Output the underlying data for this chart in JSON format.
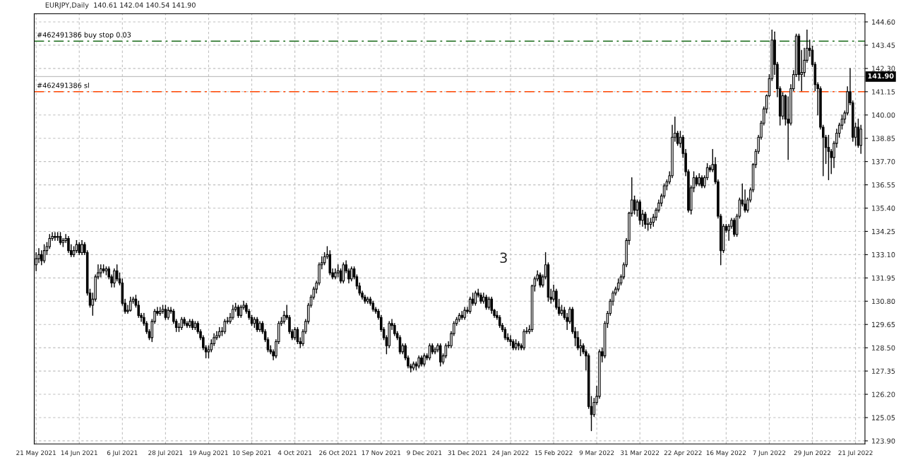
{
  "chart_data": {
    "type": "candlestick",
    "title": "EURJPY,Daily  140.61 142.04 140.54 141.90",
    "categories": [
      "21 May 2021",
      null,
      null,
      null,
      null,
      null,
      null,
      null,
      null,
      null,
      null,
      null,
      null,
      null,
      null,
      null,
      "14 Jun 2021",
      null,
      null,
      null,
      null,
      null,
      null,
      null,
      null,
      null,
      null,
      null,
      null,
      null,
      null,
      null,
      "6 Jul 2021",
      null,
      null,
      null,
      null,
      null,
      null,
      null,
      null,
      null,
      null,
      null,
      null,
      null,
      null,
      null,
      "28 Jul 2021",
      null,
      null,
      null,
      null,
      null,
      null,
      null,
      null,
      null,
      null,
      null,
      null,
      null,
      null,
      null,
      "19 Aug 2021",
      null,
      null,
      null,
      null,
      null,
      null,
      null,
      null,
      null,
      null,
      null,
      null,
      null,
      null,
      null,
      "10 Sep 2021",
      null,
      null,
      null,
      null,
      null,
      null,
      null,
      null,
      null,
      null,
      null,
      null,
      null,
      null,
      null,
      "4 Oct 2021",
      null,
      null,
      null,
      null,
      null,
      null,
      null,
      null,
      null,
      null,
      null,
      null,
      null,
      null,
      null,
      "26 Oct 2021",
      null,
      null,
      null,
      null,
      null,
      null,
      null,
      null,
      null,
      null,
      null,
      null,
      null,
      null,
      null,
      "17 Nov 2021",
      null,
      null,
      null,
      null,
      null,
      null,
      null,
      null,
      null,
      null,
      null,
      null,
      null,
      null,
      null,
      "9 Dec 2021",
      null,
      null,
      null,
      null,
      null,
      null,
      null,
      null,
      null,
      null,
      null,
      null,
      null,
      null,
      null,
      "31 Dec 2021",
      null,
      null,
      null,
      null,
      null,
      null,
      null,
      null,
      null,
      null,
      null,
      null,
      null,
      null,
      null,
      "24 Jan 2022",
      null,
      null,
      null,
      null,
      null,
      null,
      null,
      null,
      null,
      null,
      null,
      null,
      null,
      null,
      null,
      "15 Feb 2022",
      null,
      null,
      null,
      null,
      null,
      null,
      null,
      null,
      null,
      null,
      null,
      null,
      null,
      null,
      null,
      "9 Mar 2022",
      null,
      null,
      null,
      null,
      null,
      null,
      null,
      null,
      null,
      null,
      null,
      null,
      null,
      null,
      null,
      "31 Mar 2022",
      null,
      null,
      null,
      null,
      null,
      null,
      null,
      null,
      null,
      null,
      null,
      null,
      null,
      null,
      null,
      "22 Apr 2022",
      null,
      null,
      null,
      null,
      null,
      null,
      null,
      null,
      null,
      null,
      null,
      null,
      null,
      null,
      null,
      "16 May 2022",
      null,
      null,
      null,
      null,
      null,
      null,
      null,
      null,
      null,
      null,
      null,
      null,
      null,
      null,
      null,
      "7 Jun 2022",
      null,
      null,
      null,
      null,
      null,
      null,
      null,
      null,
      null,
      null,
      null,
      null,
      null,
      null,
      null,
      "29 Jun 2022",
      null,
      null,
      null,
      null,
      null,
      null,
      null,
      null,
      null,
      null,
      null,
      null,
      null,
      null,
      null,
      "21 Jul 2022",
      null,
      null
    ],
    "ohlc": [
      [
        132.6,
        133.2,
        132.3,
        132.9
      ],
      [
        132.9,
        133.4,
        132.7,
        133.1
      ],
      [
        133.1,
        133.3,
        132.6,
        132.8
      ],
      [
        132.8,
        133.6,
        132.7,
        133.3
      ],
      [
        133.3,
        133.7,
        133.1,
        133.5
      ],
      [
        133.5,
        134.1,
        133.4,
        133.9
      ],
      [
        133.9,
        134.2,
        133.8,
        134.0
      ],
      [
        134.0,
        134.2,
        133.8,
        133.95
      ],
      [
        133.95,
        134.2,
        133.8,
        134.0
      ],
      [
        134.0,
        134.2,
        133.6,
        133.7
      ],
      [
        133.7,
        133.9,
        133.5,
        133.8
      ],
      [
        133.8,
        134.1,
        133.7,
        133.9
      ],
      [
        133.9,
        134.0,
        133.2,
        133.3
      ],
      [
        133.3,
        133.6,
        133.0,
        133.1
      ],
      [
        133.1,
        133.5,
        133.0,
        133.3
      ],
      [
        133.3,
        133.8,
        133.2,
        133.6
      ],
      [
        133.6,
        133.7,
        133.1,
        133.2
      ],
      [
        133.2,
        133.8,
        133.1,
        133.6
      ],
      [
        133.6,
        133.7,
        133.1,
        133.2
      ],
      [
        133.2,
        133.3,
        131.1,
        131.2
      ],
      [
        131.2,
        131.4,
        130.5,
        130.6
      ],
      [
        130.6,
        131.2,
        130.1,
        130.9
      ],
      [
        130.9,
        132.1,
        130.8,
        132.0
      ],
      [
        132.0,
        132.6,
        131.9,
        132.2
      ],
      [
        132.2,
        132.6,
        132.0,
        132.4
      ],
      [
        132.4,
        132.6,
        132.2,
        132.3
      ],
      [
        132.3,
        132.5,
        132.1,
        132.4
      ],
      [
        132.4,
        132.5,
        131.9,
        132.0
      ],
      [
        132.0,
        132.1,
        131.5,
        131.7
      ],
      [
        131.7,
        132.4,
        131.5,
        132.3
      ],
      [
        132.3,
        132.6,
        131.8,
        131.9
      ],
      [
        131.9,
        132.2,
        131.6,
        131.7
      ],
      [
        131.7,
        131.9,
        130.6,
        130.7
      ],
      [
        130.7,
        130.9,
        130.2,
        130.3
      ],
      [
        130.3,
        130.6,
        130.2,
        130.35
      ],
      [
        130.35,
        131.0,
        130.3,
        130.8
      ],
      [
        130.8,
        131.0,
        130.7,
        130.9
      ],
      [
        130.9,
        131.1,
        130.5,
        130.6
      ],
      [
        130.6,
        130.8,
        130.0,
        130.1
      ],
      [
        130.1,
        130.2,
        129.8,
        130.0
      ],
      [
        130.0,
        130.2,
        129.6,
        129.7
      ],
      [
        129.7,
        129.8,
        129.2,
        129.3
      ],
      [
        129.3,
        129.4,
        128.9,
        129.0
      ],
      [
        129.0,
        129.9,
        128.8,
        129.8
      ],
      [
        129.8,
        130.4,
        129.7,
        130.3
      ],
      [
        130.3,
        130.5,
        130.1,
        130.2
      ],
      [
        130.2,
        130.5,
        130.1,
        130.3
      ],
      [
        130.3,
        130.6,
        130.2,
        130.4
      ],
      [
        130.4,
        130.6,
        129.9,
        130.0
      ],
      [
        130.0,
        130.5,
        129.9,
        130.35
      ],
      [
        130.35,
        130.5,
        130.2,
        130.3
      ],
      [
        130.3,
        130.4,
        129.7,
        129.8
      ],
      [
        129.8,
        129.9,
        129.3,
        129.5
      ],
      [
        129.5,
        129.7,
        129.3,
        129.5
      ],
      [
        129.5,
        130.0,
        129.4,
        129.9
      ],
      [
        129.9,
        130.0,
        129.6,
        129.7
      ],
      [
        129.7,
        129.8,
        129.5,
        129.6
      ],
      [
        129.6,
        129.9,
        129.5,
        129.8
      ],
      [
        129.8,
        129.9,
        129.4,
        129.5
      ],
      [
        129.5,
        129.8,
        129.4,
        129.7
      ],
      [
        129.7,
        129.8,
        129.2,
        129.3
      ],
      [
        129.3,
        129.4,
        128.9,
        129.0
      ],
      [
        129.0,
        129.1,
        128.4,
        128.5
      ],
      [
        128.5,
        128.6,
        128.0,
        128.3
      ],
      [
        128.3,
        128.6,
        128.0,
        128.4
      ],
      [
        128.4,
        128.9,
        128.3,
        128.7
      ],
      [
        128.7,
        129.2,
        128.6,
        129.0
      ],
      [
        129.0,
        129.3,
        128.9,
        129.1
      ],
      [
        129.1,
        129.5,
        129.0,
        129.3
      ],
      [
        129.3,
        129.5,
        129.1,
        129.3
      ],
      [
        129.3,
        129.9,
        129.2,
        129.8
      ],
      [
        129.8,
        130.0,
        129.7,
        129.8
      ],
      [
        129.8,
        130.2,
        129.7,
        130.0
      ],
      [
        130.0,
        130.6,
        129.9,
        130.4
      ],
      [
        130.4,
        130.7,
        130.3,
        130.5
      ],
      [
        130.5,
        130.6,
        130.0,
        130.1
      ],
      [
        130.1,
        130.6,
        130.0,
        130.5
      ],
      [
        130.5,
        130.8,
        130.4,
        130.6
      ],
      [
        130.6,
        130.7,
        130.2,
        130.3
      ],
      [
        130.3,
        130.4,
        129.9,
        130.0
      ],
      [
        130.0,
        130.1,
        129.6,
        129.7
      ],
      [
        129.7,
        130.0,
        129.5,
        129.9
      ],
      [
        129.9,
        130.0,
        129.3,
        129.4
      ],
      [
        129.4,
        129.8,
        129.3,
        129.7
      ],
      [
        129.7,
        129.8,
        129.2,
        129.3
      ],
      [
        129.3,
        129.4,
        128.8,
        128.9
      ],
      [
        128.9,
        129.0,
        128.3,
        128.4
      ],
      [
        128.4,
        128.6,
        128.2,
        128.3
      ],
      [
        128.3,
        128.4,
        127.9,
        128.1
      ],
      [
        128.1,
        128.9,
        128.0,
        128.8
      ],
      [
        128.8,
        129.8,
        128.7,
        129.7
      ],
      [
        129.7,
        130.0,
        129.6,
        129.8
      ],
      [
        129.8,
        130.3,
        129.7,
        130.1
      ],
      [
        130.1,
        130.6,
        129.9,
        130.0
      ],
      [
        130.0,
        130.1,
        129.2,
        129.3
      ],
      [
        129.3,
        129.4,
        128.9,
        129.0
      ],
      [
        129.0,
        129.5,
        128.9,
        129.4
      ],
      [
        129.4,
        129.5,
        128.7,
        128.8
      ],
      [
        128.8,
        129.0,
        128.5,
        128.7
      ],
      [
        128.7,
        129.4,
        128.6,
        129.3
      ],
      [
        129.3,
        129.9,
        129.2,
        129.8
      ],
      [
        129.8,
        130.7,
        129.7,
        130.6
      ],
      [
        130.6,
        131.1,
        130.5,
        131.0
      ],
      [
        131.0,
        131.5,
        130.9,
        131.4
      ],
      [
        131.4,
        131.8,
        131.2,
        131.7
      ],
      [
        131.7,
        132.7,
        131.6,
        132.6
      ],
      [
        132.6,
        133.0,
        132.4,
        132.7
      ],
      [
        132.7,
        133.2,
        132.6,
        133.0
      ],
      [
        133.0,
        133.5,
        132.9,
        133.1
      ],
      [
        133.1,
        133.3,
        132.1,
        132.2
      ],
      [
        132.2,
        132.4,
        131.9,
        132.0
      ],
      [
        132.0,
        132.4,
        131.9,
        132.2
      ],
      [
        132.2,
        132.6,
        132.0,
        132.3
      ],
      [
        132.3,
        132.4,
        131.7,
        131.8
      ],
      [
        131.8,
        132.7,
        131.7,
        132.6
      ],
      [
        132.6,
        132.8,
        132.2,
        132.3
      ],
      [
        132.3,
        132.4,
        131.7,
        131.9
      ],
      [
        131.9,
        132.5,
        131.8,
        132.4
      ],
      [
        132.4,
        132.5,
        131.9,
        132.0
      ],
      [
        132.0,
        132.1,
        131.4,
        131.55
      ],
      [
        131.55,
        131.7,
        131.1,
        131.2
      ],
      [
        131.2,
        131.3,
        130.9,
        131.0
      ],
      [
        131.0,
        131.1,
        130.7,
        130.8
      ],
      [
        130.8,
        131.0,
        130.7,
        130.9
      ],
      [
        130.9,
        131.0,
        130.6,
        130.7
      ],
      [
        130.7,
        130.8,
        130.3,
        130.4
      ],
      [
        130.4,
        130.5,
        130.2,
        130.3
      ],
      [
        130.3,
        130.4,
        129.9,
        130.0
      ],
      [
        130.0,
        130.1,
        129.3,
        129.4
      ],
      [
        129.4,
        129.5,
        128.9,
        129.0
      ],
      [
        129.0,
        129.1,
        128.2,
        128.6
      ],
      [
        128.6,
        129.8,
        128.5,
        129.7
      ],
      [
        129.7,
        129.9,
        129.4,
        129.6
      ],
      [
        129.6,
        129.7,
        129.1,
        129.2
      ],
      [
        129.2,
        129.3,
        128.9,
        129.0
      ],
      [
        129.0,
        129.1,
        128.2,
        128.3
      ],
      [
        128.3,
        128.7,
        128.2,
        128.6
      ],
      [
        128.6,
        128.7,
        127.9,
        128.0
      ],
      [
        128.0,
        128.1,
        127.5,
        127.6
      ],
      [
        127.6,
        127.7,
        127.3,
        127.5
      ],
      [
        127.5,
        127.8,
        127.4,
        127.7
      ],
      [
        127.7,
        127.8,
        127.4,
        127.6
      ],
      [
        127.6,
        128.1,
        127.5,
        128.0
      ],
      [
        128.0,
        128.1,
        127.6,
        127.7
      ],
      [
        127.7,
        128.2,
        127.6,
        128.1
      ],
      [
        128.1,
        128.2,
        127.9,
        128.0
      ],
      [
        128.0,
        128.7,
        127.9,
        128.6
      ],
      [
        128.6,
        128.7,
        128.2,
        128.3
      ],
      [
        128.3,
        128.5,
        128.2,
        128.4
      ],
      [
        128.4,
        128.7,
        128.3,
        128.6
      ],
      [
        128.6,
        128.7,
        127.6,
        127.8
      ],
      [
        127.8,
        128.2,
        127.7,
        128.1
      ],
      [
        128.1,
        128.7,
        128.0,
        128.6
      ],
      [
        128.6,
        128.8,
        128.5,
        128.6
      ],
      [
        128.6,
        129.3,
        128.5,
        129.2
      ],
      [
        129.2,
        129.8,
        129.1,
        129.7
      ],
      [
        129.7,
        130.0,
        129.6,
        129.9
      ],
      [
        129.9,
        130.2,
        129.8,
        130.1
      ],
      [
        130.1,
        130.3,
        129.9,
        130.0
      ],
      [
        130.0,
        130.5,
        129.9,
        130.35
      ],
      [
        130.35,
        130.5,
        130.2,
        130.3
      ],
      [
        130.3,
        131.0,
        130.2,
        130.9
      ],
      [
        130.9,
        131.2,
        130.6,
        130.7
      ],
      [
        130.7,
        131.3,
        130.6,
        131.2
      ],
      [
        131.2,
        131.4,
        131.0,
        131.1
      ],
      [
        131.1,
        131.2,
        130.7,
        130.8
      ],
      [
        130.8,
        131.2,
        130.7,
        131.0
      ],
      [
        131.0,
        131.1,
        130.4,
        130.5
      ],
      [
        130.5,
        131.0,
        130.4,
        130.9
      ],
      [
        130.9,
        131.0,
        130.2,
        130.35
      ],
      [
        130.35,
        130.4,
        130.0,
        130.1
      ],
      [
        130.1,
        130.3,
        129.9,
        130.0
      ],
      [
        130.0,
        130.1,
        129.5,
        129.6
      ],
      [
        129.6,
        129.7,
        129.3,
        129.4
      ],
      [
        129.4,
        129.5,
        128.9,
        129.0
      ],
      [
        129.0,
        129.2,
        128.8,
        128.9
      ],
      [
        128.9,
        129.1,
        128.6,
        128.8
      ],
      [
        128.8,
        128.9,
        128.4,
        128.5
      ],
      [
        128.5,
        128.9,
        128.4,
        128.7
      ],
      [
        128.7,
        128.8,
        128.4,
        128.6
      ],
      [
        128.6,
        128.7,
        128.4,
        128.5
      ],
      [
        128.5,
        129.4,
        128.4,
        129.3
      ],
      [
        129.3,
        129.5,
        129.2,
        129.3
      ],
      [
        129.3,
        129.6,
        129.2,
        129.4
      ],
      [
        129.4,
        131.6,
        129.3,
        131.55
      ],
      [
        131.55,
        132.0,
        131.3,
        131.9
      ],
      [
        131.9,
        132.3,
        131.8,
        132.1
      ],
      [
        132.1,
        132.2,
        131.5,
        131.6
      ],
      [
        131.6,
        132.1,
        131.5,
        132.0
      ],
      [
        132.0,
        133.2,
        131.9,
        132.6
      ],
      [
        132.6,
        132.7,
        130.8,
        131.0
      ],
      [
        131.0,
        131.4,
        130.7,
        130.9
      ],
      [
        130.9,
        131.6,
        130.8,
        131.3
      ],
      [
        131.3,
        131.4,
        130.4,
        130.5
      ],
      [
        130.5,
        130.9,
        130.1,
        130.2
      ],
      [
        130.2,
        130.6,
        130.1,
        130.35
      ],
      [
        130.35,
        130.5,
        129.9,
        130.0
      ],
      [
        130.0,
        130.2,
        129.4,
        129.8
      ],
      [
        129.8,
        130.5,
        129.7,
        130.4
      ],
      [
        130.4,
        130.5,
        129.2,
        129.3
      ],
      [
        129.3,
        129.5,
        128.6,
        129.0
      ],
      [
        129.0,
        129.3,
        128.4,
        128.5
      ],
      [
        128.5,
        128.9,
        128.1,
        128.6
      ],
      [
        128.6,
        128.7,
        128.2,
        128.3
      ],
      [
        128.3,
        128.4,
        127.4,
        128.1
      ],
      [
        128.1,
        128.2,
        125.5,
        125.6
      ],
      [
        125.6,
        126.1,
        124.4,
        125.2
      ],
      [
        125.2,
        126.0,
        125.1,
        125.8
      ],
      [
        125.8,
        126.6,
        125.7,
        126.1
      ],
      [
        126.1,
        128.4,
        126.0,
        128.3
      ],
      [
        128.3,
        128.5,
        127.8,
        128.1
      ],
      [
        128.1,
        129.8,
        128.0,
        129.7
      ],
      [
        129.7,
        130.3,
        129.5,
        130.2
      ],
      [
        130.2,
        130.9,
        130.1,
        130.8
      ],
      [
        130.8,
        131.3,
        130.6,
        131.2
      ],
      [
        131.2,
        131.5,
        131.1,
        131.4
      ],
      [
        131.4,
        131.9,
        131.3,
        131.7
      ],
      [
        131.7,
        132.1,
        131.6,
        132.0
      ],
      [
        132.0,
        132.7,
        131.9,
        132.6
      ],
      [
        132.6,
        133.9,
        132.5,
        133.8
      ],
      [
        133.8,
        135.2,
        133.6,
        135.15
      ],
      [
        135.15,
        136.9,
        135.0,
        135.8
      ],
      [
        135.8,
        136.0,
        135.1,
        135.3
      ],
      [
        135.3,
        135.8,
        135.0,
        135.7
      ],
      [
        135.7,
        135.8,
        134.6,
        134.8
      ],
      [
        134.8,
        135.3,
        134.5,
        135.1
      ],
      [
        135.1,
        135.2,
        134.4,
        134.6
      ],
      [
        134.6,
        134.9,
        134.3,
        134.6
      ],
      [
        134.6,
        134.9,
        134.4,
        134.7
      ],
      [
        134.7,
        135.1,
        134.5,
        134.95
      ],
      [
        134.95,
        135.4,
        134.8,
        135.3
      ],
      [
        135.3,
        135.8,
        135.2,
        135.65
      ],
      [
        135.65,
        136.1,
        135.5,
        136.0
      ],
      [
        136.0,
        136.6,
        135.9,
        136.5
      ],
      [
        136.5,
        136.8,
        136.3,
        136.7
      ],
      [
        136.7,
        137.2,
        136.6,
        137.0
      ],
      [
        137.0,
        139.5,
        136.9,
        138.9
      ],
      [
        138.9,
        139.9,
        138.7,
        139.1
      ],
      [
        139.1,
        139.2,
        138.5,
        138.6
      ],
      [
        138.6,
        139.2,
        138.4,
        138.9
      ],
      [
        138.9,
        139.0,
        137.9,
        138.1
      ],
      [
        138.1,
        138.3,
        137.0,
        137.2
      ],
      [
        137.2,
        137.3,
        135.2,
        135.3
      ],
      [
        135.3,
        136.5,
        135.1,
        136.4
      ],
      [
        136.4,
        137.2,
        136.2,
        136.9
      ],
      [
        136.9,
        137.0,
        136.5,
        136.6
      ],
      [
        136.6,
        137.1,
        136.5,
        136.9
      ],
      [
        136.9,
        137.0,
        136.4,
        136.5
      ],
      [
        136.5,
        137.0,
        136.4,
        136.9
      ],
      [
        136.9,
        137.6,
        136.8,
        137.4
      ],
      [
        137.4,
        137.5,
        137.2,
        137.3
      ],
      [
        137.3,
        138.3,
        137.2,
        137.55
      ],
      [
        137.55,
        137.9,
        136.6,
        136.7
      ],
      [
        136.7,
        136.8,
        134.9,
        135.0
      ],
      [
        135.0,
        135.1,
        132.6,
        133.3
      ],
      [
        133.3,
        134.6,
        133.2,
        134.5
      ],
      [
        134.5,
        134.6,
        134.2,
        134.3
      ],
      [
        134.3,
        134.6,
        133.8,
        134.5
      ],
      [
        134.5,
        134.9,
        134.4,
        134.8
      ],
      [
        134.8,
        134.9,
        134.0,
        134.1
      ],
      [
        134.1,
        135.1,
        134.0,
        135.0
      ],
      [
        135.0,
        135.9,
        134.9,
        135.8
      ],
      [
        135.8,
        136.6,
        135.5,
        135.6
      ],
      [
        135.6,
        136.3,
        135.2,
        135.3
      ],
      [
        135.3,
        135.9,
        135.2,
        135.8
      ],
      [
        135.8,
        136.4,
        135.7,
        136.3
      ],
      [
        136.3,
        137.6,
        136.2,
        137.55
      ],
      [
        137.55,
        138.3,
        137.4,
        138.2
      ],
      [
        138.2,
        139.0,
        138.1,
        138.9
      ],
      [
        138.9,
        139.7,
        138.8,
        139.6
      ],
      [
        139.6,
        140.4,
        139.5,
        140.3
      ],
      [
        140.3,
        141.0,
        140.1,
        140.95
      ],
      [
        140.95,
        142.0,
        140.9,
        141.8
      ],
      [
        141.8,
        144.2,
        141.7,
        143.7
      ],
      [
        143.7,
        144.1,
        142.0,
        142.5
      ],
      [
        142.5,
        142.6,
        140.9,
        141.3
      ],
      [
        141.3,
        141.4,
        139.5,
        139.95
      ],
      [
        139.95,
        141.1,
        139.8,
        140.95
      ],
      [
        140.95,
        141.0,
        139.5,
        139.8
      ],
      [
        139.8,
        140.9,
        137.8,
        139.6
      ],
      [
        139.6,
        141.5,
        139.5,
        141.3
      ],
      [
        141.3,
        142.2,
        141.2,
        142.0
      ],
      [
        142.0,
        144.0,
        141.9,
        143.9
      ],
      [
        143.9,
        144.0,
        141.7,
        142.0
      ],
      [
        142.0,
        143.2,
        141.2,
        142.1
      ],
      [
        142.1,
        143.3,
        141.9,
        142.7
      ],
      [
        142.7,
        144.2,
        142.6,
        143.3
      ],
      [
        143.3,
        143.7,
        142.9,
        143.2
      ],
      [
        143.2,
        143.4,
        142.4,
        142.5
      ],
      [
        142.5,
        142.6,
        141.2,
        141.5
      ],
      [
        141.5,
        141.6,
        140.0,
        141.3
      ],
      [
        141.3,
        141.4,
        139.3,
        139.4
      ],
      [
        139.4,
        139.5,
        137.0,
        138.9
      ],
      [
        138.9,
        139.0,
        137.6,
        138.4
      ],
      [
        138.4,
        139.0,
        136.8,
        138.2
      ],
      [
        138.2,
        138.3,
        137.1,
        137.9
      ],
      [
        137.9,
        138.7,
        137.4,
        138.6
      ],
      [
        138.6,
        139.3,
        138.4,
        139.1
      ],
      [
        139.1,
        139.6,
        138.9,
        139.5
      ],
      [
        139.5,
        140.0,
        139.3,
        139.8
      ],
      [
        139.8,
        140.2,
        139.6,
        140.1
      ],
      [
        140.1,
        141.4,
        140.0,
        141.15
      ],
      [
        141.15,
        142.3,
        140.5,
        140.6
      ],
      [
        140.6,
        140.7,
        138.7,
        138.9
      ],
      [
        138.9,
        139.6,
        138.5,
        139.4
      ],
      [
        139.4,
        139.8,
        138.4,
        138.5
      ],
      [
        138.5,
        139.5,
        138.1,
        139.3
      ]
    ],
    "ylim": [
      123.75,
      145.0
    ],
    "yticks": [
      {
        "value": 123.9,
        "label": "123.90"
      },
      {
        "value": 125.05,
        "label": "125.05"
      },
      {
        "value": 126.2,
        "label": "126.20"
      },
      {
        "value": 127.35,
        "label": "127.35"
      },
      {
        "value": 128.5,
        "label": "128.50"
      },
      {
        "value": 129.65,
        "label": "129.65"
      },
      {
        "value": 130.8,
        "label": "130.80"
      },
      {
        "value": 131.95,
        "label": "131.95"
      },
      {
        "value": 133.1,
        "label": "133.10"
      },
      {
        "value": 134.25,
        "label": "134.25"
      },
      {
        "value": 135.4,
        "label": "135.40"
      },
      {
        "value": 136.55,
        "label": "136.55"
      },
      {
        "value": 137.7,
        "label": "137.70"
      },
      {
        "value": 138.85,
        "label": "138.85"
      },
      {
        "value": 140.0,
        "label": "140.00"
      },
      {
        "value": 141.15,
        "label": "141.15"
      },
      {
        "value": 142.3,
        "label": "142.30"
      },
      {
        "value": 143.45,
        "label": "143.45"
      },
      {
        "value": 144.6,
        "label": "144.60"
      }
    ],
    "ref_lines": [
      {
        "axis": "y",
        "value": 143.65,
        "label": "#462491386 buy stop 0.03",
        "color": "#1a6b1a",
        "line_style": "dashed"
      },
      {
        "axis": "y",
        "value": 141.15,
        "label": "#462491386 sl",
        "color": "#ff4500",
        "line_style": "dashed"
      },
      {
        "axis": "y",
        "value": 141.9,
        "label": "141.90",
        "color": "#c0c0c0",
        "line_style": "solid"
      }
    ],
    "annotations": [
      "3"
    ],
    "grid": true
  }
}
